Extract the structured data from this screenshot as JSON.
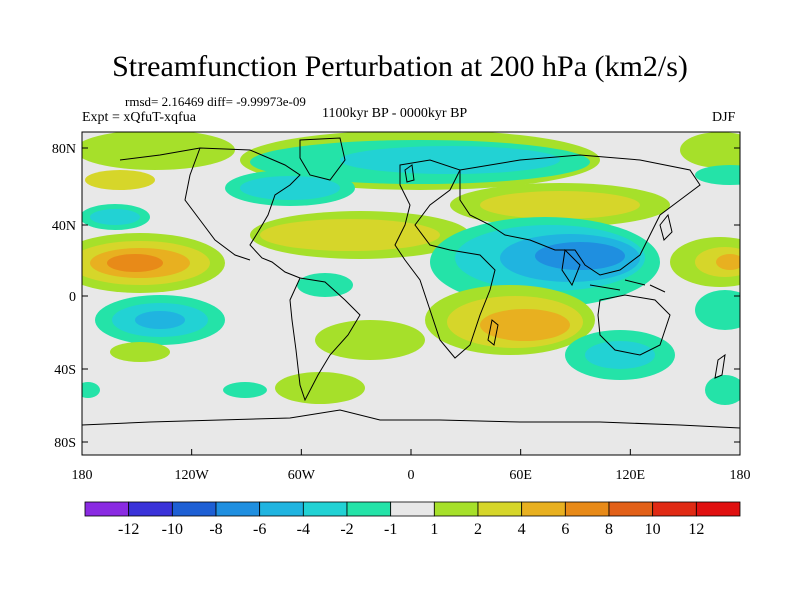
{
  "title": "Streamfunction Perturbation at 200 hPa (km2/s)",
  "subtitle_left_top": "rmsd= 2.16469 diff= -9.99973e-09",
  "subtitle_left": "Expt = xQfuT-xqfua",
  "subtitle_center": "1100kyr BP - 0000kyr BP",
  "subtitle_right": "DJF",
  "axes": {
    "x_ticks": [
      "180",
      "120W",
      "60W",
      "0",
      "60E",
      "120E",
      "180"
    ],
    "y_ticks": [
      "80N",
      "40N",
      "0",
      "40S",
      "80S"
    ]
  },
  "colorbar": {
    "labels": [
      "-12",
      "-10",
      "-8",
      "-6",
      "-4",
      "-2",
      "-1",
      "1",
      "2",
      "4",
      "6",
      "8",
      "10",
      "12"
    ],
    "colors": [
      "#8a2be2",
      "#3a32d9",
      "#1e5fd4",
      "#1f8fe0",
      "#20b4e0",
      "#22d2d4",
      "#24e3a8",
      "#e8e8e8",
      "#a6e02a",
      "#d6d62a",
      "#e8b020",
      "#e88a18",
      "#e26018",
      "#e02a14",
      "#e01010"
    ]
  }
}
